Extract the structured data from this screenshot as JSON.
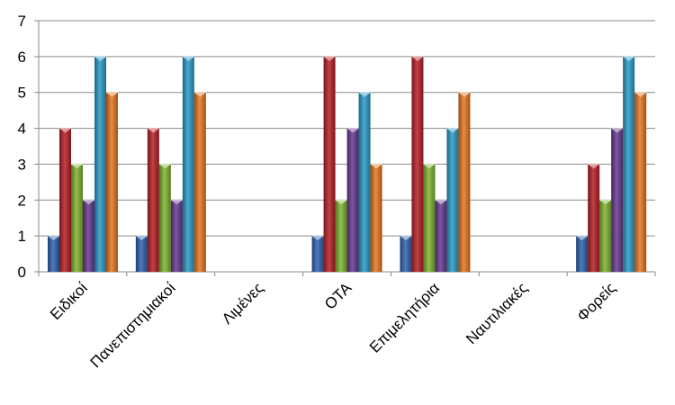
{
  "chart_data": {
    "type": "bar",
    "title": "",
    "xlabel": "",
    "ylabel": "",
    "ylim": [
      0,
      7
    ],
    "yticks": [
      0,
      1,
      2,
      3,
      4,
      5,
      6,
      7
    ],
    "grid": true,
    "legend": "none",
    "categories": [
      "Ειδικοί",
      "Πανεπιστημιακοί",
      "Λιμένες",
      "ΟΤΑ",
      "Επιμελητήρια",
      "Ναυτιλιακές",
      "Φορείς"
    ],
    "series": [
      {
        "color": "#2f63b0",
        "values": [
          1,
          1,
          0,
          1,
          1,
          0,
          1
        ]
      },
      {
        "color": "#b52025",
        "values": [
          4,
          4,
          0,
          6,
          6,
          0,
          3
        ]
      },
      {
        "color": "#7fb42f",
        "values": [
          3,
          3,
          0,
          2,
          3,
          0,
          2
        ]
      },
      {
        "color": "#66398f",
        "values": [
          2,
          2,
          0,
          4,
          2,
          0,
          4
        ]
      },
      {
        "color": "#2b9bc6",
        "values": [
          6,
          6,
          0,
          5,
          4,
          0,
          6
        ]
      },
      {
        "color": "#e8771f",
        "values": [
          5,
          5,
          0,
          3,
          5,
          0,
          5
        ]
      }
    ]
  }
}
